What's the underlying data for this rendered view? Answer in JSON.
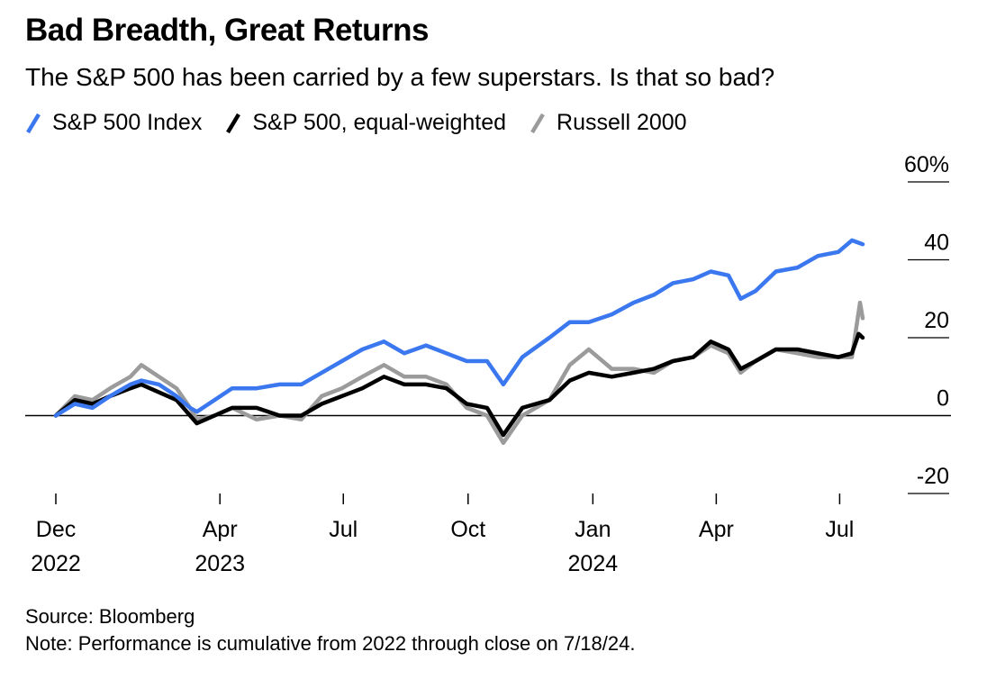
{
  "title": "Bad Breadth, Great Returns",
  "subtitle": "The S&P 500 has been carried by a few superstars. Is that so bad?",
  "source": "Source: Bloomberg",
  "note": "Note: Performance is cumulative from 2022 through close on 7/18/24.",
  "chart_data": {
    "type": "line",
    "x_range": [
      "2022-12-01",
      "2024-07-18"
    ],
    "ylim": [
      -20,
      60
    ],
    "y_ticks": [
      {
        "value": 60,
        "label": "60%"
      },
      {
        "value": 40,
        "label": "40"
      },
      {
        "value": 20,
        "label": "20"
      },
      {
        "value": 0,
        "label": "0"
      },
      {
        "value": -20,
        "label": "-20"
      }
    ],
    "x_ticks": [
      {
        "date": "2022-12-01",
        "month": "Dec",
        "year": "2022"
      },
      {
        "date": "2023-04-01",
        "month": "Apr",
        "year": "2023"
      },
      {
        "date": "2023-07-01",
        "month": "Jul",
        "year": ""
      },
      {
        "date": "2023-10-01",
        "month": "Oct",
        "year": ""
      },
      {
        "date": "2024-01-01",
        "month": "Jan",
        "year": "2024"
      },
      {
        "date": "2024-04-01",
        "month": "Apr",
        "year": ""
      },
      {
        "date": "2024-07-01",
        "month": "Jul",
        "year": ""
      }
    ],
    "zero_line": true,
    "legend_position": "top-left",
    "series": [
      {
        "name": "S&P 500 Index",
        "color": "#3b78f0",
        "points": [
          [
            "2022-12-01",
            0
          ],
          [
            "2022-12-15",
            3
          ],
          [
            "2022-12-28",
            2
          ],
          [
            "2023-01-10",
            5
          ],
          [
            "2023-01-25",
            8
          ],
          [
            "2023-02-02",
            9
          ],
          [
            "2023-02-15",
            8
          ],
          [
            "2023-02-28",
            5
          ],
          [
            "2023-03-10",
            2
          ],
          [
            "2023-03-15",
            1
          ],
          [
            "2023-03-28",
            4
          ],
          [
            "2023-04-10",
            7
          ],
          [
            "2023-04-28",
            7
          ],
          [
            "2023-05-15",
            8
          ],
          [
            "2023-05-31",
            8
          ],
          [
            "2023-06-15",
            11
          ],
          [
            "2023-06-30",
            14
          ],
          [
            "2023-07-15",
            17
          ],
          [
            "2023-07-31",
            19
          ],
          [
            "2023-08-15",
            16
          ],
          [
            "2023-08-31",
            18
          ],
          [
            "2023-09-15",
            16
          ],
          [
            "2023-09-30",
            14
          ],
          [
            "2023-10-15",
            14
          ],
          [
            "2023-10-27",
            8
          ],
          [
            "2023-11-10",
            15
          ],
          [
            "2023-11-30",
            20
          ],
          [
            "2023-12-15",
            24
          ],
          [
            "2023-12-29",
            24
          ],
          [
            "2024-01-15",
            26
          ],
          [
            "2024-01-31",
            29
          ],
          [
            "2024-02-15",
            31
          ],
          [
            "2024-02-29",
            34
          ],
          [
            "2024-03-15",
            35
          ],
          [
            "2024-03-28",
            37
          ],
          [
            "2024-04-10",
            36
          ],
          [
            "2024-04-19",
            30
          ],
          [
            "2024-04-30",
            32
          ],
          [
            "2024-05-15",
            37
          ],
          [
            "2024-05-31",
            38
          ],
          [
            "2024-06-15",
            41
          ],
          [
            "2024-06-30",
            42
          ],
          [
            "2024-07-10",
            45
          ],
          [
            "2024-07-18",
            44
          ]
        ]
      },
      {
        "name": "S&P 500, equal-weighted",
        "color": "#000000",
        "points": [
          [
            "2022-12-01",
            0
          ],
          [
            "2022-12-15",
            4
          ],
          [
            "2022-12-28",
            3
          ],
          [
            "2023-01-10",
            5
          ],
          [
            "2023-01-25",
            7
          ],
          [
            "2023-02-02",
            8
          ],
          [
            "2023-02-15",
            6
          ],
          [
            "2023-02-28",
            4
          ],
          [
            "2023-03-10",
            0
          ],
          [
            "2023-03-15",
            -2
          ],
          [
            "2023-03-28",
            0
          ],
          [
            "2023-04-10",
            2
          ],
          [
            "2023-04-28",
            2
          ],
          [
            "2023-05-15",
            0
          ],
          [
            "2023-05-31",
            0
          ],
          [
            "2023-06-15",
            3
          ],
          [
            "2023-06-30",
            5
          ],
          [
            "2023-07-15",
            7
          ],
          [
            "2023-07-31",
            10
          ],
          [
            "2023-08-15",
            8
          ],
          [
            "2023-08-31",
            8
          ],
          [
            "2023-09-15",
            7
          ],
          [
            "2023-09-30",
            3
          ],
          [
            "2023-10-15",
            2
          ],
          [
            "2023-10-27",
            -5
          ],
          [
            "2023-11-10",
            2
          ],
          [
            "2023-11-30",
            4
          ],
          [
            "2023-12-15",
            9
          ],
          [
            "2023-12-29",
            11
          ],
          [
            "2024-01-15",
            10
          ],
          [
            "2024-01-31",
            11
          ],
          [
            "2024-02-15",
            12
          ],
          [
            "2024-02-29",
            14
          ],
          [
            "2024-03-15",
            15
          ],
          [
            "2024-03-28",
            19
          ],
          [
            "2024-04-10",
            17
          ],
          [
            "2024-04-19",
            12
          ],
          [
            "2024-04-30",
            14
          ],
          [
            "2024-05-15",
            17
          ],
          [
            "2024-05-31",
            17
          ],
          [
            "2024-06-15",
            16
          ],
          [
            "2024-06-30",
            15
          ],
          [
            "2024-07-10",
            16
          ],
          [
            "2024-07-15",
            21
          ],
          [
            "2024-07-18",
            20
          ]
        ]
      },
      {
        "name": "Russell 2000",
        "color": "#9b9b9b",
        "points": [
          [
            "2022-12-01",
            0
          ],
          [
            "2022-12-15",
            5
          ],
          [
            "2022-12-28",
            4
          ],
          [
            "2023-01-10",
            7
          ],
          [
            "2023-01-25",
            10
          ],
          [
            "2023-02-02",
            13
          ],
          [
            "2023-02-15",
            10
          ],
          [
            "2023-02-28",
            7
          ],
          [
            "2023-03-10",
            2
          ],
          [
            "2023-03-15",
            -1
          ],
          [
            "2023-03-28",
            0
          ],
          [
            "2023-04-10",
            2
          ],
          [
            "2023-04-28",
            -1
          ],
          [
            "2023-05-15",
            0
          ],
          [
            "2023-05-31",
            -1
          ],
          [
            "2023-06-15",
            5
          ],
          [
            "2023-06-30",
            7
          ],
          [
            "2023-07-15",
            10
          ],
          [
            "2023-07-31",
            13
          ],
          [
            "2023-08-15",
            10
          ],
          [
            "2023-08-31",
            10
          ],
          [
            "2023-09-15",
            8
          ],
          [
            "2023-09-30",
            2
          ],
          [
            "2023-10-15",
            0
          ],
          [
            "2023-10-27",
            -7
          ],
          [
            "2023-11-10",
            0
          ],
          [
            "2023-11-30",
            4
          ],
          [
            "2023-12-15",
            13
          ],
          [
            "2023-12-29",
            17
          ],
          [
            "2024-01-15",
            12
          ],
          [
            "2024-01-31",
            12
          ],
          [
            "2024-02-15",
            11
          ],
          [
            "2024-02-29",
            14
          ],
          [
            "2024-03-15",
            15
          ],
          [
            "2024-03-28",
            18
          ],
          [
            "2024-04-10",
            16
          ],
          [
            "2024-04-19",
            11
          ],
          [
            "2024-04-30",
            14
          ],
          [
            "2024-05-15",
            17
          ],
          [
            "2024-05-31",
            16
          ],
          [
            "2024-06-15",
            15
          ],
          [
            "2024-06-30",
            15
          ],
          [
            "2024-07-10",
            15
          ],
          [
            "2024-07-16",
            29
          ],
          [
            "2024-07-18",
            25
          ]
        ]
      }
    ]
  }
}
